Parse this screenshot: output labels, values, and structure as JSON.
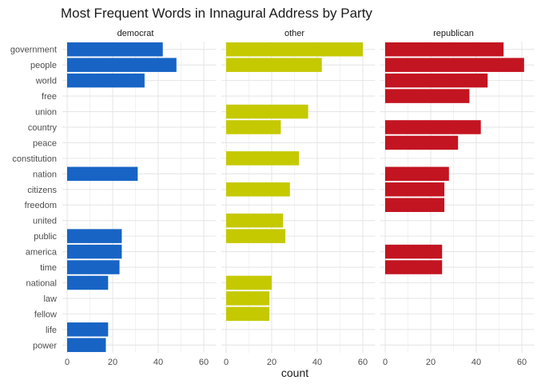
{
  "chart_data": {
    "type": "bar",
    "orientation": "horizontal",
    "title": "Most Frequent Words in Innagural Address by Party",
    "xlabel": "count",
    "ylabel": "",
    "xlim": [
      0,
      64
    ],
    "xticks": [
      0,
      20,
      40,
      60
    ],
    "grid": true,
    "categories": [
      "government",
      "people",
      "world",
      "free",
      "union",
      "country",
      "peace",
      "constitution",
      "nation",
      "citizens",
      "freedom",
      "united",
      "public",
      "america",
      "time",
      "national",
      "law",
      "fellow",
      "life",
      "power"
    ],
    "panels": [
      {
        "name": "democrat",
        "color": "#1764C5",
        "values": [
          42,
          48,
          34,
          null,
          null,
          null,
          null,
          null,
          31,
          null,
          null,
          null,
          24,
          24,
          23,
          18,
          null,
          null,
          18,
          17
        ]
      },
      {
        "name": "other",
        "color": "#C5C900",
        "values": [
          60,
          42,
          null,
          null,
          36,
          24,
          null,
          32,
          null,
          28,
          null,
          25,
          26,
          null,
          null,
          20,
          19,
          19,
          null,
          null
        ]
      },
      {
        "name": "republican",
        "color": "#C31421",
        "values": [
          52,
          61,
          45,
          37,
          null,
          42,
          32,
          null,
          28,
          26,
          26,
          null,
          null,
          25,
          25,
          null,
          null,
          null,
          null,
          null
        ]
      }
    ]
  }
}
